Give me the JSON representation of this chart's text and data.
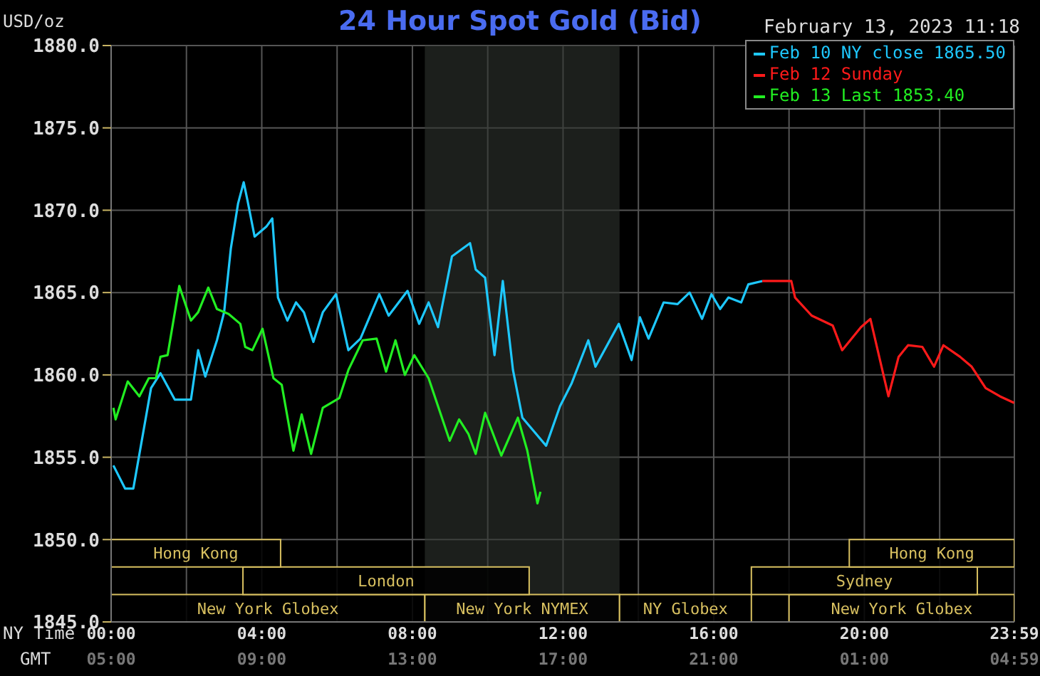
{
  "chart_data": {
    "type": "line",
    "title": "24 Hour Spot Gold (Bid)",
    "subtitle": "February 13, 2023 11:18",
    "ylabel": "USD/oz",
    "xlabel": "NY Time",
    "x2label": "GMT",
    "xlim": [
      0,
      23.983
    ],
    "xticks": [
      {
        "value": 0,
        "label": "00:00"
      },
      {
        "value": 2,
        "label": null
      },
      {
        "value": 4,
        "label": "04:00"
      },
      {
        "value": 6,
        "label": null
      },
      {
        "value": 8,
        "label": "08:00"
      },
      {
        "value": 10,
        "label": null
      },
      {
        "value": 12,
        "label": "12:00"
      },
      {
        "value": 14,
        "label": null
      },
      {
        "value": 16,
        "label": "16:00"
      },
      {
        "value": 18,
        "label": null
      },
      {
        "value": 20,
        "label": "20:00"
      },
      {
        "value": 22,
        "label": null
      },
      {
        "value": 23.983,
        "label": "23:59"
      }
    ],
    "x2lim": [
      "2023-02-13T05:00",
      "2023-02-14T04:59"
    ],
    "x2ticks": [
      {
        "value": "2023-02-13T05:00",
        "label": "05:00"
      },
      {
        "value": "2023-02-13T09:00",
        "label": "09:00"
      },
      {
        "value": "2023-02-13T13:00",
        "label": "13:00"
      },
      {
        "value": "2023-02-13T17:00",
        "label": "17:00"
      },
      {
        "value": "2023-02-13T21:00",
        "label": "21:00"
      },
      {
        "value": "2023-02-14T01:00",
        "label": "01:00"
      },
      {
        "value": "2023-02-14T04:59",
        "label": "04:59"
      }
    ],
    "ylim": [
      1845,
      1880
    ],
    "yticks": [
      {
        "value": 1845,
        "label": "1845.0"
      },
      {
        "value": 1850,
        "label": "1850.0"
      },
      {
        "value": 1855,
        "label": "1855.0"
      },
      {
        "value": 1860,
        "label": "1860.0"
      },
      {
        "value": 1865,
        "label": "1865.0"
      },
      {
        "value": 1870,
        "label": "1870.0"
      },
      {
        "value": 1875,
        "label": "1875.0"
      },
      {
        "value": 1880,
        "label": "1880.0"
      }
    ],
    "grid": true,
    "legend": "top right",
    "bands": [
      {
        "axis": "x",
        "from": 8.33,
        "to": 13.5,
        "color": "#2e332e"
      },
      {
        "axis": "x",
        "from": 0,
        "to": 8.33,
        "label": "New York Globex",
        "color": "#d8c060"
      },
      {
        "axis": "x",
        "from": 8.33,
        "to": 13.5,
        "label": "New York NYMEX",
        "color": "#d8c060"
      },
      {
        "axis": "x",
        "from": 13.5,
        "to": 17,
        "label": "NY Globex",
        "color": "#d8c060"
      },
      {
        "axis": "x",
        "from": 18,
        "to": 23.983,
        "label": "New York Globex",
        "color": "#d8c060"
      },
      {
        "axis": "x",
        "from": 3.5,
        "to": 11.1,
        "label": "London",
        "color": "#d8c060"
      },
      {
        "axis": "x",
        "from": 17,
        "to": 23,
        "label": "Sydney",
        "color": "#d8c060"
      },
      {
        "axis": "x",
        "from": 0,
        "to": 4.5,
        "label": "Hong Kong",
        "color": "#d8c060"
      },
      {
        "axis": "x",
        "from": 19.6,
        "to": 23.983,
        "label": "Hong Kong",
        "color": "#d8c060"
      }
    ],
    "series": [
      {
        "name": "Feb 10 NY close 1865.50",
        "color": "#1ec8ff",
        "x": [
          0.06,
          0.37,
          0.59,
          1.06,
          1.31,
          1.69,
          2.12,
          2.31,
          2.5,
          2.81,
          3.0,
          3.18,
          3.37,
          3.52,
          3.62,
          3.81,
          4.12,
          4.28,
          4.43,
          4.68,
          4.91,
          5.12,
          5.37,
          5.62,
          5.97,
          6.3,
          6.62,
          7.12,
          7.37,
          7.87,
          8.18,
          8.43,
          8.68,
          9.05,
          9.53,
          9.68,
          9.93,
          10.18,
          10.4,
          10.67,
          10.92,
          11.55,
          11.92,
          12.23,
          12.67,
          12.86,
          13.48,
          13.82,
          14.04,
          14.27,
          14.67,
          15.04,
          15.36,
          15.69,
          15.94,
          16.17,
          16.39,
          16.73,
          16.92,
          17.29
        ],
        "values": [
          1854.5,
          1853.1,
          1853.1,
          1859.2,
          1860.1,
          1858.5,
          1858.5,
          1861.5,
          1859.9,
          1862.1,
          1863.8,
          1867.7,
          1870.4,
          1871.7,
          1870.6,
          1868.4,
          1869.0,
          1869.5,
          1864.7,
          1863.3,
          1864.4,
          1863.8,
          1862.0,
          1863.8,
          1864.9,
          1861.5,
          1862.2,
          1864.9,
          1863.6,
          1865.1,
          1863.1,
          1864.4,
          1862.9,
          1867.2,
          1868.0,
          1866.4,
          1865.9,
          1861.2,
          1865.7,
          1860.3,
          1857.4,
          1855.7,
          1858.1,
          1859.5,
          1862.1,
          1860.5,
          1863.1,
          1860.9,
          1863.5,
          1862.2,
          1864.4,
          1864.3,
          1865.0,
          1863.4,
          1864.9,
          1864.0,
          1864.7,
          1864.4,
          1865.5,
          1865.7
        ]
      },
      {
        "name": "Feb 12 Sunday",
        "color": "#ff1a1a",
        "x": [
          17.29,
          18.06,
          18.16,
          18.6,
          19.16,
          19.41,
          19.91,
          20.16,
          20.64,
          20.91,
          21.16,
          21.54,
          21.85,
          22.1,
          22.54,
          22.85,
          23.22,
          23.6,
          23.98
        ],
        "values": [
          1865.7,
          1865.7,
          1864.7,
          1863.6,
          1863.0,
          1861.5,
          1862.9,
          1863.4,
          1858.7,
          1861.1,
          1861.8,
          1861.7,
          1860.5,
          1861.8,
          1861.1,
          1860.5,
          1859.2,
          1858.7,
          1858.3
        ]
      },
      {
        "name": "Feb 13 Last 1853.40",
        "color": "#22ee22",
        "x": [
          0.06,
          0.12,
          0.44,
          0.75,
          1.0,
          1.19,
          1.31,
          1.5,
          1.81,
          2.12,
          2.31,
          2.58,
          2.81,
          3.12,
          3.43,
          3.56,
          3.75,
          4.02,
          4.31,
          4.53,
          4.84,
          5.06,
          5.31,
          5.62,
          6.06,
          6.3,
          6.68,
          7.05,
          7.3,
          7.55,
          7.8,
          8.05,
          8.43,
          8.99,
          9.24,
          9.49,
          9.68,
          9.93,
          10.36,
          10.8,
          11.05,
          11.32,
          11.4
        ],
        "values": [
          1858.0,
          1857.3,
          1859.6,
          1858.7,
          1859.8,
          1859.8,
          1861.1,
          1861.2,
          1865.4,
          1863.3,
          1863.8,
          1865.3,
          1864.0,
          1863.7,
          1863.1,
          1861.7,
          1861.5,
          1862.8,
          1859.8,
          1859.4,
          1855.4,
          1857.6,
          1855.2,
          1858.0,
          1858.6,
          1860.3,
          1862.1,
          1862.2,
          1860.2,
          1862.1,
          1860.0,
          1861.2,
          1859.8,
          1856.0,
          1857.3,
          1856.4,
          1855.2,
          1857.7,
          1855.1,
          1857.4,
          1855.4,
          1852.2,
          1852.9
        ]
      }
    ]
  }
}
